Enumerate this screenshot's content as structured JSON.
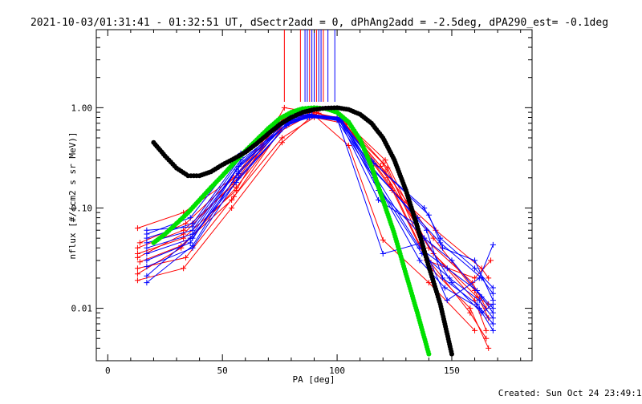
{
  "chart_data": {
    "type": "scatter",
    "title": "2021-10-03/01:31:41 - 01:32:51 UT, dSectr2add = 0, dPhAng2add = -2.5deg, dPA290_est= -0.1deg",
    "xlabel": "PA [deg]",
    "ylabel": "nflux [#/(cm2 s sr MeV)]",
    "xlim": [
      -5,
      185
    ],
    "ylim": [
      0.003,
      6
    ],
    "yscale": "log",
    "x_ticks": [
      {
        "value": 0,
        "label": "0"
      },
      {
        "value": 50,
        "label": "50"
      },
      {
        "value": 100,
        "label": "100"
      },
      {
        "value": 150,
        "label": "150"
      }
    ],
    "y_ticks": [
      {
        "value": 0.01,
        "label": "0.01"
      },
      {
        "value": 0.1,
        "label": "0.10"
      },
      {
        "value": 1.0,
        "label": "1.00"
      }
    ],
    "grid": false,
    "footer": "Created: Sun Oct 24 23:49:19 2021",
    "colors": {
      "red": "#ff0000",
      "blue": "#0000ff",
      "green": "#00e000",
      "black": "#000000"
    },
    "series": [
      {
        "color": "red",
        "marker": "plus",
        "points": [
          [
            13,
            0.063
          ],
          [
            33,
            0.09
          ],
          [
            55,
            0.2
          ],
          [
            75,
            0.75
          ],
          [
            88,
            0.92
          ],
          [
            105,
            0.42
          ],
          [
            120,
            0.048
          ],
          [
            140,
            0.018
          ],
          [
            160,
            0.006
          ]
        ]
      },
      {
        "color": "red",
        "marker": "plus",
        "points": [
          [
            13,
            0.04
          ],
          [
            33,
            0.06
          ],
          [
            55,
            0.17
          ],
          [
            75,
            0.62
          ],
          [
            88,
            0.86
          ],
          [
            102,
            0.8
          ],
          [
            122,
            0.25
          ],
          [
            140,
            0.03
          ],
          [
            158,
            0.009
          ],
          [
            165,
            0.005
          ]
        ]
      },
      {
        "color": "red",
        "marker": "plus",
        "points": [
          [
            13,
            0.035
          ],
          [
            33,
            0.05
          ],
          [
            56,
            0.15
          ],
          [
            77,
            1.0
          ],
          [
            92,
            0.88
          ],
          [
            102,
            0.72
          ],
          [
            120,
            0.28
          ],
          [
            140,
            0.04
          ],
          [
            160,
            0.012
          ],
          [
            165,
            0.006
          ]
        ]
      },
      {
        "color": "red",
        "marker": "plus",
        "points": [
          [
            14,
            0.029
          ],
          [
            32,
            0.042
          ],
          [
            54,
            0.12
          ],
          [
            75,
            0.58
          ],
          [
            88,
            0.84
          ],
          [
            102,
            0.75
          ],
          [
            121,
            0.23
          ],
          [
            142,
            0.05
          ],
          [
            160,
            0.015
          ],
          [
            166,
            0.008
          ]
        ]
      },
      {
        "color": "red",
        "marker": "plus",
        "points": [
          [
            13,
            0.025
          ],
          [
            34,
            0.032
          ],
          [
            55,
            0.13
          ],
          [
            76,
            0.5
          ],
          [
            90,
            0.8
          ],
          [
            103,
            0.7
          ],
          [
            122,
            0.2
          ],
          [
            141,
            0.025
          ],
          [
            158,
            0.01
          ],
          [
            166,
            0.004
          ]
        ]
      },
      {
        "color": "red",
        "marker": "plus",
        "points": [
          [
            13,
            0.022
          ],
          [
            32,
            0.04
          ],
          [
            56,
            0.16
          ],
          [
            78,
            0.7
          ],
          [
            91,
            0.9
          ],
          [
            104,
            0.68
          ],
          [
            123,
            0.17
          ],
          [
            139,
            0.03
          ],
          [
            160,
            0.02
          ],
          [
            167,
            0.03
          ]
        ]
      },
      {
        "color": "red",
        "marker": "plus",
        "points": [
          [
            13,
            0.019
          ],
          [
            33,
            0.025
          ],
          [
            54,
            0.1
          ],
          [
            76,
            0.45
          ],
          [
            89,
            0.82
          ],
          [
            102,
            0.78
          ],
          [
            124,
            0.15
          ],
          [
            143,
            0.06
          ],
          [
            163,
            0.025
          ],
          [
            166,
            0.02
          ]
        ]
      },
      {
        "color": "red",
        "marker": "plus",
        "points": [
          [
            14,
            0.045
          ],
          [
            34,
            0.07
          ],
          [
            57,
            0.22
          ],
          [
            77,
            0.8
          ],
          [
            90,
            0.86
          ],
          [
            103,
            0.74
          ],
          [
            121,
            0.3
          ],
          [
            138,
            0.05
          ],
          [
            159,
            0.018
          ],
          [
            165,
            0.01
          ]
        ]
      },
      {
        "color": "red",
        "marker": "plus",
        "points": [
          [
            13,
            0.032
          ],
          [
            33,
            0.055
          ],
          [
            55,
            0.18
          ],
          [
            75,
            0.66
          ],
          [
            89,
            0.9
          ],
          [
            101,
            0.79
          ],
          [
            119,
            0.26
          ],
          [
            142,
            0.035
          ],
          [
            161,
            0.013
          ],
          [
            166,
            0.011
          ]
        ]
      },
      {
        "color": "blue",
        "marker": "plus",
        "points": [
          [
            17,
            0.06
          ],
          [
            37,
            0.065
          ],
          [
            58,
            0.3
          ],
          [
            79,
            0.7
          ],
          [
            87,
            0.82
          ],
          [
            101,
            0.78
          ],
          [
            115,
            0.25
          ],
          [
            135,
            0.08
          ],
          [
            145,
            0.045
          ],
          [
            163,
            0.02
          ],
          [
            168,
            0.014
          ]
        ]
      },
      {
        "color": "blue",
        "marker": "plus",
        "points": [
          [
            17,
            0.055
          ],
          [
            36,
            0.08
          ],
          [
            58,
            0.35
          ],
          [
            80,
            0.78
          ],
          [
            89,
            0.84
          ],
          [
            101,
            0.76
          ],
          [
            115,
            0.3
          ],
          [
            140,
            0.085
          ],
          [
            146,
            0.04
          ],
          [
            160,
            0.03
          ],
          [
            168,
            0.012
          ]
        ]
      },
      {
        "color": "blue",
        "marker": "plus",
        "points": [
          [
            17,
            0.045
          ],
          [
            37,
            0.06
          ],
          [
            57,
            0.26
          ],
          [
            79,
            0.72
          ],
          [
            88,
            0.83
          ],
          [
            100,
            0.8
          ],
          [
            116,
            0.22
          ],
          [
            136,
            0.04
          ],
          [
            148,
            0.025
          ],
          [
            161,
            0.015
          ],
          [
            168,
            0.01
          ]
        ]
      },
      {
        "color": "blue",
        "marker": "plus",
        "points": [
          [
            17,
            0.04
          ],
          [
            37,
            0.055
          ],
          [
            56,
            0.24
          ],
          [
            78,
            0.68
          ],
          [
            88,
            0.8
          ],
          [
            102,
            0.77
          ],
          [
            117,
            0.18
          ],
          [
            137,
            0.035
          ],
          [
            149,
            0.02
          ],
          [
            162,
            0.012
          ],
          [
            168,
            0.008
          ]
        ]
      },
      {
        "color": "blue",
        "marker": "plus",
        "points": [
          [
            17,
            0.035
          ],
          [
            37,
            0.05
          ],
          [
            57,
            0.22
          ],
          [
            79,
            0.74
          ],
          [
            87,
            0.81
          ],
          [
            100,
            0.75
          ],
          [
            116,
            0.2
          ],
          [
            136,
            0.03
          ],
          [
            147,
            0.016
          ],
          [
            162,
            0.01
          ],
          [
            168,
            0.006
          ]
        ]
      },
      {
        "color": "blue",
        "marker": "plus",
        "points": [
          [
            17,
            0.03
          ],
          [
            36,
            0.045
          ],
          [
            58,
            0.28
          ],
          [
            80,
            0.8
          ],
          [
            89,
            0.85
          ],
          [
            101,
            0.79
          ],
          [
            118,
            0.15
          ],
          [
            138,
            0.05
          ],
          [
            150,
            0.03
          ],
          [
            163,
            0.013
          ],
          [
            168,
            0.009
          ]
        ]
      },
      {
        "color": "blue",
        "marker": "plus",
        "points": [
          [
            17,
            0.026
          ],
          [
            37,
            0.04
          ],
          [
            57,
            0.2
          ],
          [
            78,
            0.66
          ],
          [
            88,
            0.82
          ],
          [
            102,
            0.74
          ],
          [
            115,
            0.26
          ],
          [
            139,
            0.06
          ],
          [
            146,
            0.02
          ],
          [
            161,
            0.011
          ],
          [
            168,
            0.007
          ]
        ]
      },
      {
        "color": "blue",
        "marker": "plus",
        "points": [
          [
            17,
            0.021
          ],
          [
            36,
            0.05
          ],
          [
            56,
            0.18
          ],
          [
            79,
            0.7
          ],
          [
            87,
            0.8
          ],
          [
            101,
            0.76
          ],
          [
            118,
            0.12
          ],
          [
            134,
            0.07
          ],
          [
            150,
            0.018
          ],
          [
            163,
            0.009
          ],
          [
            168,
            0.011
          ]
        ]
      },
      {
        "color": "blue",
        "marker": "plus",
        "points": [
          [
            17,
            0.018
          ],
          [
            37,
            0.042
          ],
          [
            57,
            0.23
          ],
          [
            80,
            0.76
          ],
          [
            89,
            0.83
          ],
          [
            100,
            0.78
          ],
          [
            120,
            0.035
          ],
          [
            137,
            0.045
          ],
          [
            148,
            0.012
          ],
          [
            162,
            0.02
          ],
          [
            168,
            0.043
          ]
        ]
      },
      {
        "color": "blue",
        "marker": "plus",
        "points": [
          [
            17,
            0.05
          ],
          [
            37,
            0.07
          ],
          [
            58,
            0.32
          ],
          [
            79,
            0.82
          ],
          [
            88,
            0.86
          ],
          [
            101,
            0.8
          ],
          [
            116,
            0.28
          ],
          [
            138,
            0.1
          ],
          [
            145,
            0.05
          ],
          [
            160,
            0.025
          ],
          [
            168,
            0.016
          ]
        ]
      }
    ],
    "green_dots": [
      [
        20,
        0.045
      ],
      [
        25,
        0.055
      ],
      [
        30,
        0.07
      ],
      [
        35,
        0.09
      ],
      [
        40,
        0.12
      ],
      [
        45,
        0.16
      ],
      [
        50,
        0.21
      ],
      [
        55,
        0.28
      ],
      [
        60,
        0.37
      ],
      [
        65,
        0.48
      ],
      [
        70,
        0.62
      ],
      [
        75,
        0.78
      ],
      [
        80,
        0.9
      ],
      [
        85,
        0.98
      ],
      [
        90,
        1.0
      ],
      [
        95,
        0.98
      ],
      [
        100,
        0.9
      ],
      [
        105,
        0.72
      ],
      [
        110,
        0.48
      ],
      [
        115,
        0.26
      ],
      [
        120,
        0.12
      ],
      [
        125,
        0.055
      ],
      [
        130,
        0.022
      ],
      [
        135,
        0.009
      ],
      [
        140,
        0.0035
      ]
    ],
    "black_dots": [
      [
        20,
        0.45
      ],
      [
        25,
        0.33
      ],
      [
        30,
        0.25
      ],
      [
        35,
        0.21
      ],
      [
        40,
        0.21
      ],
      [
        45,
        0.23
      ],
      [
        50,
        0.27
      ],
      [
        55,
        0.31
      ],
      [
        60,
        0.36
      ],
      [
        65,
        0.44
      ],
      [
        70,
        0.55
      ],
      [
        75,
        0.68
      ],
      [
        80,
        0.8
      ],
      [
        85,
        0.9
      ],
      [
        90,
        0.96
      ],
      [
        95,
        0.99
      ],
      [
        100,
        1.0
      ],
      [
        105,
        0.96
      ],
      [
        110,
        0.86
      ],
      [
        115,
        0.7
      ],
      [
        120,
        0.5
      ],
      [
        125,
        0.3
      ],
      [
        130,
        0.15
      ],
      [
        135,
        0.065
      ],
      [
        140,
        0.026
      ],
      [
        145,
        0.011
      ],
      [
        150,
        0.0035
      ]
    ],
    "vlines": [
      {
        "x": 77,
        "color": "red"
      },
      {
        "x": 84,
        "color": "red"
      },
      {
        "x": 86,
        "color": "blue"
      },
      {
        "x": 87,
        "color": "blue"
      },
      {
        "x": 88,
        "color": "red"
      },
      {
        "x": 89,
        "color": "blue"
      },
      {
        "x": 90,
        "color": "blue"
      },
      {
        "x": 91,
        "color": "red"
      },
      {
        "x": 92,
        "color": "blue"
      },
      {
        "x": 93,
        "color": "blue"
      },
      {
        "x": 94,
        "color": "red"
      },
      {
        "x": 96,
        "color": "blue"
      },
      {
        "x": 99,
        "color": "blue"
      }
    ]
  }
}
